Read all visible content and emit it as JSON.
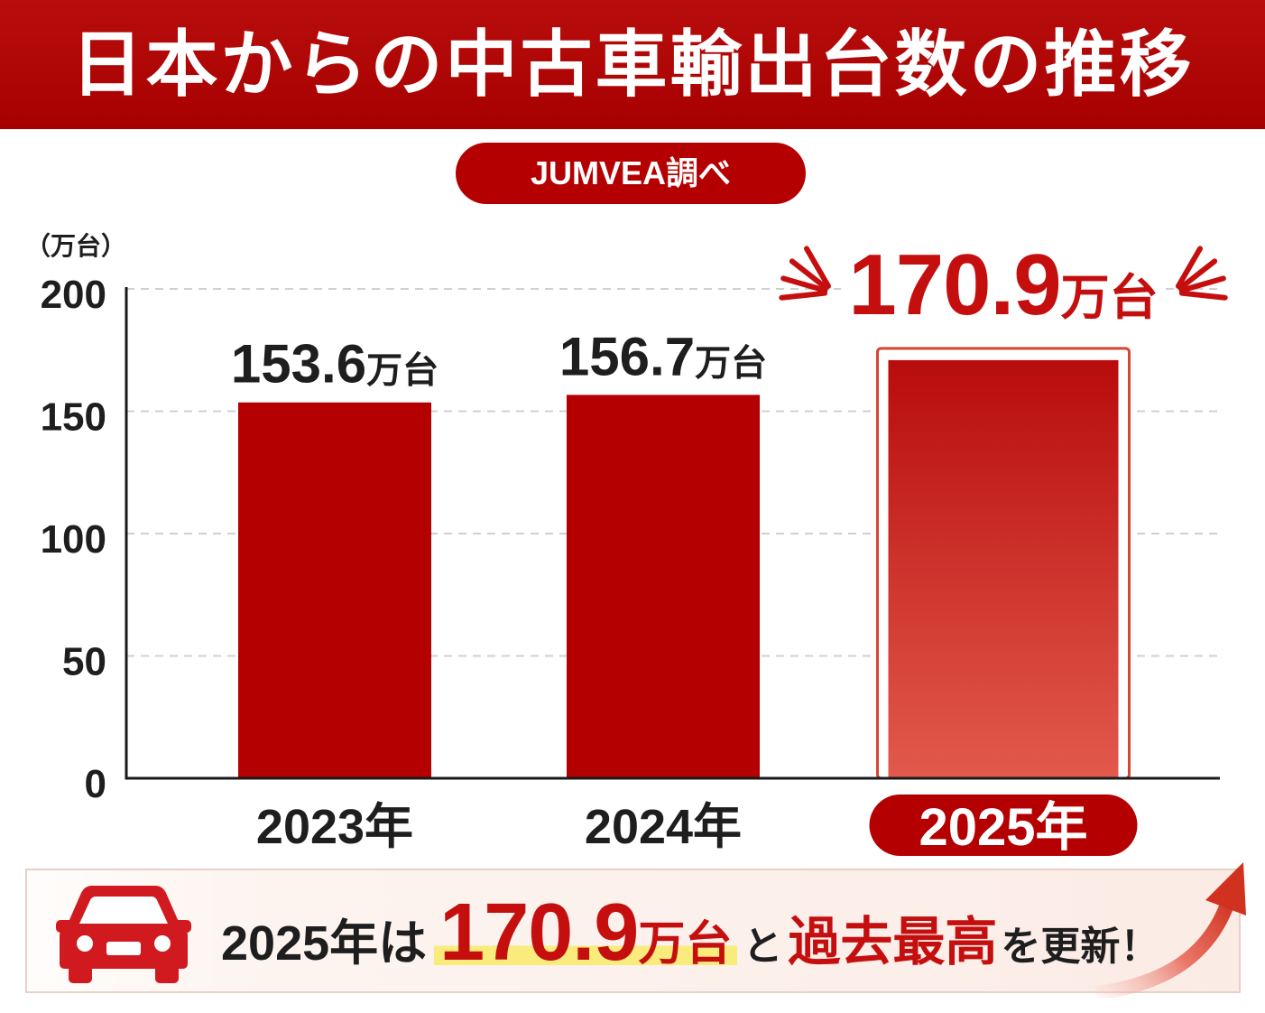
{
  "source": "JUMVEA調べ",
  "colors": {
    "banner": "#b40000",
    "bar": "#b40000",
    "highlight_top": "#b80c0c",
    "highlight_bottom": "#e25a4c",
    "highlight_frame": "#d54632",
    "accent_text": "#c50f0f",
    "text": "#1e1e1e",
    "grid": "#d0d0d0",
    "marker": "#f9ec7c",
    "car": "#d11a1f",
    "arrow": "#d1321f"
  },
  "icons": {
    "car": "car-icon",
    "arrow": "trend-up-arrow-icon"
  },
  "chart_data": {
    "type": "bar",
    "title": "日本からの中古車輸出台数の推移",
    "ylabel": "（万台）",
    "categories": [
      "2023年",
      "2024年",
      "2025年"
    ],
    "values": [
      153.6,
      156.7,
      170.9
    ],
    "value_unit": "万台",
    "emphasized": [
      false,
      false,
      true
    ],
    "ylim": [
      0,
      200
    ],
    "yticks": [
      0,
      50,
      100,
      150,
      200
    ],
    "grid": true
  },
  "callout": {
    "lead": "2025年は",
    "value": "170.9",
    "unit": "万台",
    "connector": "と",
    "emphasis": "過去最高",
    "tail": "を更新！"
  }
}
